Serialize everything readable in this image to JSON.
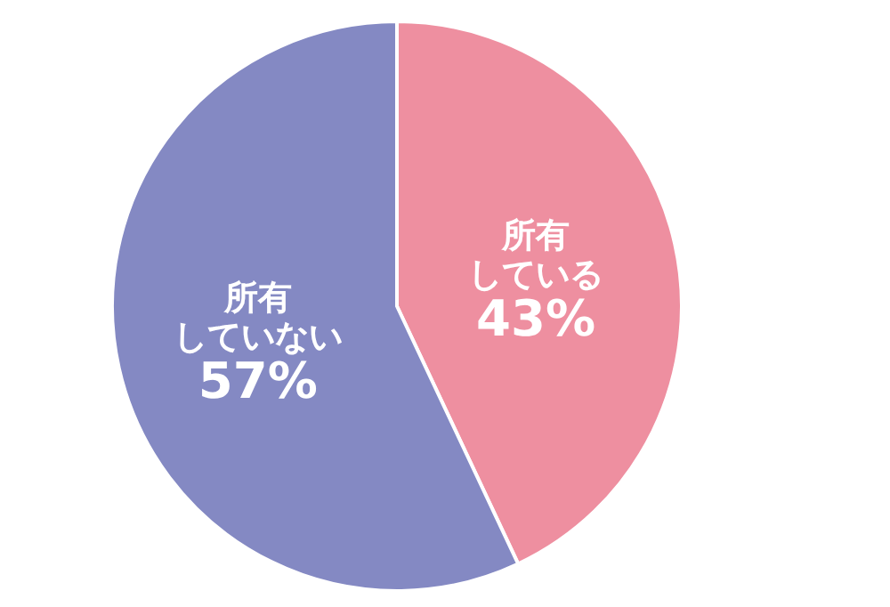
{
  "chart_data": {
    "type": "pie",
    "categories": [
      "所有している",
      "所有していない"
    ],
    "values": [
      43,
      57
    ],
    "value_labels": [
      "43%",
      "57%"
    ],
    "colors": [
      "#ee8fa0",
      "#8489c3"
    ]
  }
}
